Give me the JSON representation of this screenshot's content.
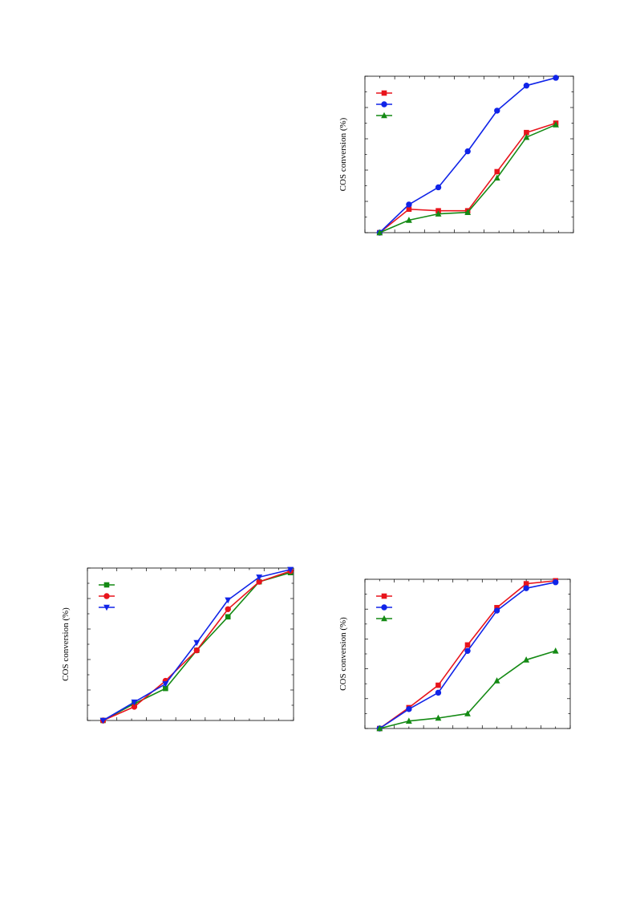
{
  "chart_data": [
    {
      "type": "line",
      "xlabel": "",
      "ylabel": "COS conversion (%)",
      "title": "",
      "ylim": [
        0,
        100
      ],
      "grid": false,
      "legend": {
        "placement": "top-left"
      },
      "x": [
        1,
        2,
        3,
        4,
        5,
        6,
        7
      ],
      "series": [
        {
          "color": "#e8141c",
          "marker": "square",
          "values": [
            0,
            15,
            14,
            14,
            39,
            64,
            70
          ]
        },
        {
          "color": "#1024e8",
          "marker": "circle",
          "values": [
            0,
            18,
            29,
            52,
            78,
            94,
            99
          ]
        },
        {
          "color": "#148a14",
          "marker": "triangle-up",
          "values": [
            0,
            8,
            12,
            13,
            35,
            61,
            69
          ]
        }
      ]
    },
    {
      "type": "line",
      "xlabel": "",
      "ylabel": "COS conversion (%)",
      "title": "",
      "ylim": [
        0,
        100
      ],
      "grid": false,
      "legend": {
        "placement": "top-left"
      },
      "x": [
        1,
        2,
        3,
        4,
        5,
        6,
        7
      ],
      "series": [
        {
          "color": "#148a14",
          "marker": "square",
          "values": [
            0,
            11,
            21,
            46,
            68,
            91,
            97
          ]
        },
        {
          "color": "#e8141c",
          "marker": "circle",
          "values": [
            0,
            9,
            26,
            46,
            73,
            91,
            98
          ]
        },
        {
          "color": "#1024e8",
          "marker": "triangle-down",
          "values": [
            0,
            12,
            24,
            51,
            79,
            94,
            99
          ]
        }
      ]
    },
    {
      "type": "line",
      "xlabel": "",
      "ylabel": "COS conversion (%)",
      "title": "",
      "ylim": [
        0,
        100
      ],
      "grid": false,
      "legend": {
        "placement": "top-left"
      },
      "x": [
        1,
        2,
        3,
        4,
        5,
        6,
        7
      ],
      "series": [
        {
          "color": "#e8141c",
          "marker": "square",
          "values": [
            0,
            14,
            29,
            56,
            81,
            97,
            99
          ]
        },
        {
          "color": "#1024e8",
          "marker": "circle",
          "values": [
            0,
            13,
            24,
            52,
            79,
            94,
            98
          ]
        },
        {
          "color": "#148a14",
          "marker": "triangle-up",
          "values": [
            0,
            5,
            7,
            10,
            32,
            46,
            52
          ]
        }
      ]
    }
  ]
}
